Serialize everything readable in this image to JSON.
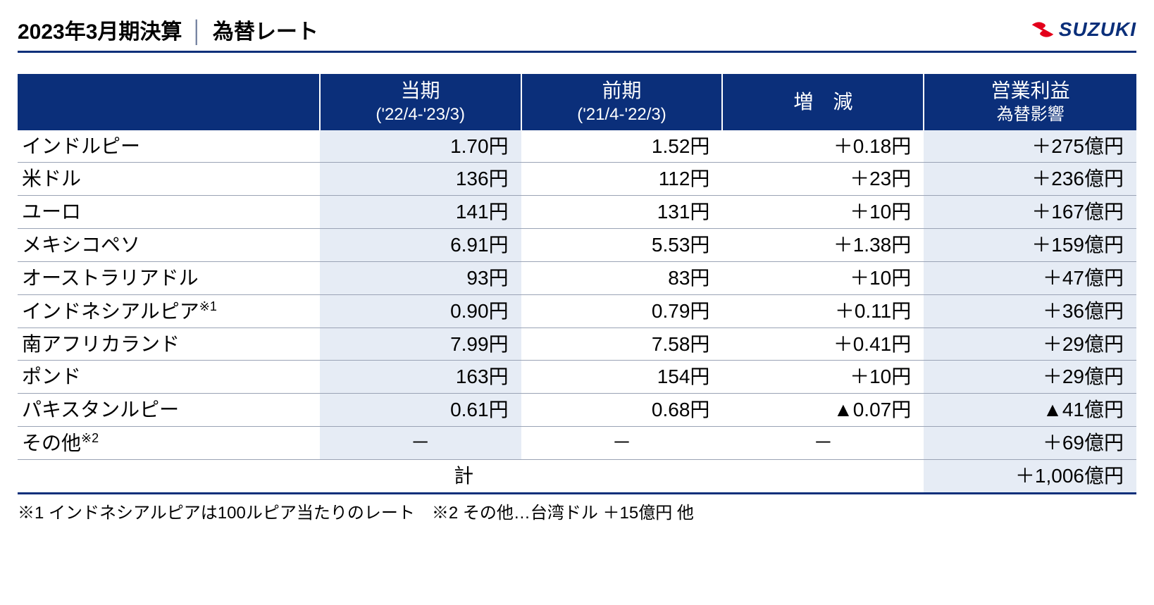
{
  "title_left": "2023年3月期決算",
  "title_sep": "│",
  "title_right": "為替レート",
  "logo_text": "SUZUKI",
  "columns": {
    "name": "",
    "current_main": "当期",
    "current_sub": "('22/4-'23/3)",
    "previous_main": "前期",
    "previous_sub": "('21/4-'22/3)",
    "diff": "増　減",
    "impact_line1": "営業利益",
    "impact_line2": "為替影響"
  },
  "rows": [
    {
      "name": "インドルピー",
      "current": "1.70円",
      "previous": "1.52円",
      "diff": "＋0.18円",
      "impact": "＋275億円"
    },
    {
      "name": "米ドル",
      "current": "136円",
      "previous": "112円",
      "diff": "＋23円",
      "impact": "＋236億円"
    },
    {
      "name": "ユーロ",
      "current": "141円",
      "previous": "131円",
      "diff": "＋10円",
      "impact": "＋167億円"
    },
    {
      "name": "メキシコペソ",
      "current": "6.91円",
      "previous": "5.53円",
      "diff": "＋1.38円",
      "impact": "＋159億円"
    },
    {
      "name": "オーストラリアドル",
      "current": "93円",
      "previous": "83円",
      "diff": "＋10円",
      "impact": "＋47億円"
    },
    {
      "name_html": "インドネシアルピア<sup>※1</sup>",
      "current": "0.90円",
      "previous": "0.79円",
      "diff": "＋0.11円",
      "impact": "＋36億円"
    },
    {
      "name": "南アフリカランド",
      "current": "7.99円",
      "previous": "7.58円",
      "diff": "＋0.41円",
      "impact": "＋29億円"
    },
    {
      "name": "ポンド",
      "current": "163円",
      "previous": "154円",
      "diff": "＋10円",
      "impact": "＋29億円"
    },
    {
      "name": "パキスタンルピー",
      "current": "0.61円",
      "previous": "0.68円",
      "diff": "▲0.07円",
      "impact": "▲41億円"
    },
    {
      "name_html": "その他<sup>※2</sup>",
      "current": "－",
      "previous": "－",
      "diff": "－",
      "impact": "＋69億円",
      "center_dash": true
    }
  ],
  "total": {
    "name": "計",
    "impact": "＋1,006億円"
  },
  "footnote": "※1 インドネシアルピアは100ルピア当たりのレート　※2 その他…台湾ドル ＋15億円 他",
  "colors": {
    "header_bg": "#0b2f7a",
    "header_fg": "#ffffff",
    "shade_bg": "#e6ecf5",
    "rule": "#9aa3b5"
  }
}
